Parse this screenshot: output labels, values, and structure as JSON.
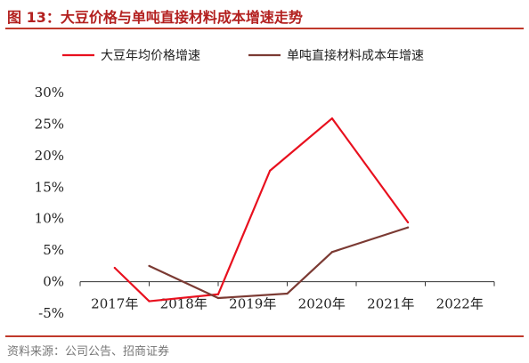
{
  "header": {
    "title": "图 13：大豆价格与单吨直接材料成本增速走势"
  },
  "footer": {
    "source": "资料来源：公司公告、招商证券"
  },
  "chart_data": {
    "type": "line",
    "title": "图 13：大豆价格与单吨直接材料成本增速走势",
    "xlabel": "",
    "ylabel": "",
    "categories": [
      "2017年",
      "2018年",
      "2019年",
      "2020年",
      "2021年",
      "2022年"
    ],
    "yticks": [
      "30%",
      "25%",
      "20%",
      "15%",
      "10%",
      "5%",
      "0%",
      "-5%"
    ],
    "ylim": [
      -5,
      30
    ],
    "grid": false,
    "legend_position": "top",
    "series": [
      {
        "name": "大豆年均价格增速",
        "color": "#e8101e",
        "x": [
          0.5,
          1.0,
          2.0,
          2.75,
          3.65,
          4.75
        ],
        "values": [
          2.2,
          -3.1,
          -2.0,
          17.6,
          25.9,
          9.4
        ]
      },
      {
        "name": "单吨直接材料成本年增速",
        "color": "#7b3a33",
        "x": [
          1.0,
          2.0,
          3.0,
          3.65,
          4.75
        ],
        "values": [
          2.5,
          -2.6,
          -1.9,
          4.7,
          8.6
        ]
      }
    ]
  }
}
